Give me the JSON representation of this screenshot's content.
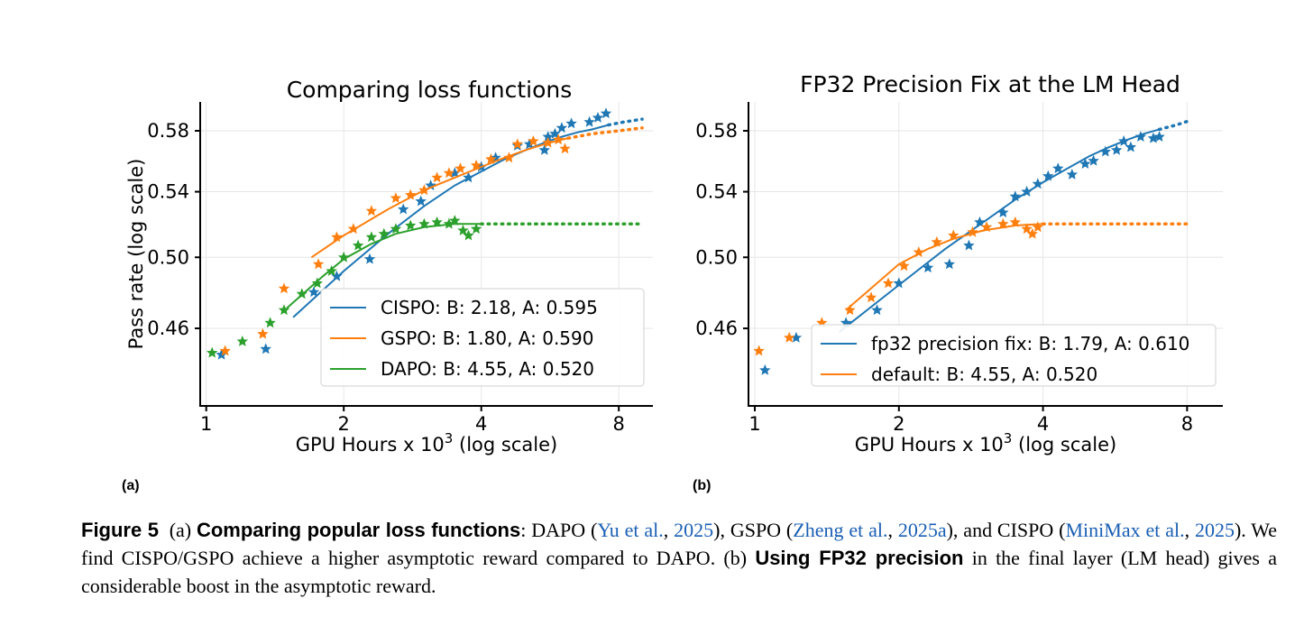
{
  "chart_data": [
    {
      "type": "scatter",
      "panel_label": "(a)",
      "title": "Comparing loss functions",
      "xlabel": "GPU Hours x 10",
      "xlabel_sup": "3",
      "xlabel_suffix": " (log scale)",
      "ylabel": "Pass rate (log scale)",
      "xscale": "log2",
      "yscale": "log",
      "xlim": [
        0.97,
        9.5
      ],
      "ylim": [
        0.42,
        0.6
      ],
      "xticks": [
        1,
        2,
        4,
        8
      ],
      "xtick_labels": [
        "1",
        "2",
        "4",
        "8"
      ],
      "yticks": [
        0.46,
        0.5,
        0.54,
        0.58
      ],
      "ytick_labels": [
        "0.46",
        "0.50",
        "0.54",
        "0.58"
      ],
      "grid": true,
      "legend_position": "lower-right",
      "series": [
        {
          "name": "CISPO: B: 2.18, A: 0.595",
          "color": "#1f77b4",
          "points": [
            [
              1.08,
              0.446
            ],
            [
              1.35,
              0.449
            ],
            [
              1.72,
              0.48
            ],
            [
              1.93,
              0.489
            ],
            [
              2.28,
              0.499
            ],
            [
              2.7,
              0.529
            ],
            [
              2.95,
              0.534
            ],
            [
              3.1,
              0.544
            ],
            [
              3.5,
              0.552
            ],
            [
              3.75,
              0.549
            ],
            [
              4.0,
              0.556
            ],
            [
              4.3,
              0.562
            ],
            [
              4.8,
              0.57
            ],
            [
              5.1,
              0.571
            ],
            [
              5.5,
              0.567
            ],
            [
              5.6,
              0.576
            ],
            [
              5.8,
              0.578
            ],
            [
              6.0,
              0.582
            ],
            [
              6.3,
              0.585
            ],
            [
              6.9,
              0.586
            ],
            [
              7.2,
              0.589
            ],
            [
              7.5,
              0.592
            ]
          ],
          "fit_solid": [
            [
              1.55,
              0.466
            ],
            [
              2.0,
              0.492
            ],
            [
              2.5,
              0.514
            ],
            [
              3.0,
              0.531
            ],
            [
              3.5,
              0.544
            ],
            [
              4.0,
              0.553
            ],
            [
              4.5,
              0.561
            ],
            [
              5.0,
              0.567
            ],
            [
              5.5,
              0.572
            ],
            [
              6.0,
              0.576
            ],
            [
              6.5,
              0.579
            ],
            [
              7.0,
              0.581
            ],
            [
              7.6,
              0.584
            ]
          ],
          "fit_dotted": [
            [
              7.6,
              0.584
            ],
            [
              8.2,
              0.586
            ],
            [
              9.0,
              0.588
            ]
          ]
        },
        {
          "name": "GSPO: B: 1.80, A: 0.590",
          "color": "#ff7f0e",
          "points": [
            [
              1.1,
              0.448
            ],
            [
              1.33,
              0.457
            ],
            [
              1.48,
              0.482
            ],
            [
              1.76,
              0.496
            ],
            [
              1.93,
              0.512
            ],
            [
              2.1,
              0.517
            ],
            [
              2.3,
              0.528
            ],
            [
              2.6,
              0.536
            ],
            [
              2.8,
              0.538
            ],
            [
              3.0,
              0.541
            ],
            [
              3.2,
              0.549
            ],
            [
              3.4,
              0.552
            ],
            [
              3.6,
              0.555
            ],
            [
              3.9,
              0.557
            ],
            [
              4.2,
              0.561
            ],
            [
              4.6,
              0.562
            ],
            [
              4.8,
              0.571
            ],
            [
              5.2,
              0.573
            ],
            [
              5.6,
              0.572
            ],
            [
              5.9,
              0.574
            ],
            [
              6.1,
              0.568
            ]
          ],
          "fit_solid": [
            [
              1.7,
              0.5
            ],
            [
              2.0,
              0.513
            ],
            [
              2.5,
              0.529
            ],
            [
              3.0,
              0.541
            ],
            [
              3.5,
              0.549
            ],
            [
              4.0,
              0.556
            ],
            [
              4.5,
              0.562
            ],
            [
              5.0,
              0.567
            ],
            [
              5.5,
              0.571
            ],
            [
              6.0,
              0.574
            ],
            [
              6.2,
              0.575
            ]
          ],
          "fit_dotted": [
            [
              6.2,
              0.575
            ],
            [
              7.0,
              0.578
            ],
            [
              8.0,
              0.58
            ],
            [
              9.0,
              0.582
            ]
          ]
        },
        {
          "name": "DAPO: B: 4.55, A: 0.520",
          "color": "#2ca02c",
          "points": [
            [
              1.03,
              0.447
            ],
            [
              1.2,
              0.453
            ],
            [
              1.38,
              0.463
            ],
            [
              1.48,
              0.47
            ],
            [
              1.62,
              0.479
            ],
            [
              1.75,
              0.485
            ],
            [
              1.88,
              0.492
            ],
            [
              2.0,
              0.5
            ],
            [
              2.15,
              0.507
            ],
            [
              2.3,
              0.512
            ],
            [
              2.45,
              0.514
            ],
            [
              2.6,
              0.517
            ],
            [
              2.8,
              0.519
            ],
            [
              3.0,
              0.52
            ],
            [
              3.2,
              0.521
            ],
            [
              3.4,
              0.52
            ],
            [
              3.5,
              0.522
            ],
            [
              3.65,
              0.516
            ],
            [
              3.75,
              0.513
            ],
            [
              3.9,
              0.517
            ]
          ],
          "fit_solid": [
            [
              1.5,
              0.471
            ],
            [
              1.8,
              0.489
            ],
            [
              2.0,
              0.499
            ],
            [
              2.3,
              0.508
            ],
            [
              2.6,
              0.514
            ],
            [
              3.0,
              0.518
            ],
            [
              3.5,
              0.52
            ],
            [
              4.0,
              0.52
            ]
          ],
          "fit_dotted": [
            [
              4.0,
              0.52
            ],
            [
              6.0,
              0.52
            ],
            [
              9.0,
              0.52
            ]
          ]
        }
      ]
    },
    {
      "type": "scatter",
      "panel_label": "(b)",
      "title": "FP32 Precision Fix at the LM Head",
      "xlabel": "GPU Hours x 10",
      "xlabel_sup": "3",
      "xlabel_suffix": " (log scale)",
      "xscale": "log2",
      "yscale": "log",
      "xlim": [
        0.97,
        9.5
      ],
      "ylim": [
        0.42,
        0.6
      ],
      "xticks": [
        1,
        2,
        4,
        8
      ],
      "xtick_labels": [
        "1",
        "2",
        "4",
        "8"
      ],
      "yticks": [
        0.46,
        0.5,
        0.54,
        0.58
      ],
      "ytick_labels": [
        "0.46",
        "0.50",
        "0.54",
        "0.58"
      ],
      "grid": true,
      "legend_position": "lower-right",
      "series": [
        {
          "name": "fp32 precision fix: B: 1.79, A: 0.610",
          "color": "#1f77b4",
          "points": [
            [
              1.05,
              0.438
            ],
            [
              1.22,
              0.455
            ],
            [
              1.55,
              0.463
            ],
            [
              1.8,
              0.47
            ],
            [
              2.0,
              0.485
            ],
            [
              2.3,
              0.494
            ],
            [
              2.55,
              0.496
            ],
            [
              2.8,
              0.507
            ],
            [
              2.95,
              0.521
            ],
            [
              3.3,
              0.527
            ],
            [
              3.5,
              0.537
            ],
            [
              3.7,
              0.54
            ],
            [
              3.9,
              0.545
            ],
            [
              4.1,
              0.55
            ],
            [
              4.3,
              0.555
            ],
            [
              4.6,
              0.551
            ],
            [
              4.9,
              0.558
            ],
            [
              5.1,
              0.56
            ],
            [
              5.4,
              0.566
            ],
            [
              5.7,
              0.567
            ],
            [
              5.9,
              0.573
            ],
            [
              6.1,
              0.569
            ],
            [
              6.4,
              0.576
            ],
            [
              6.8,
              0.575
            ],
            [
              7.0,
              0.576
            ]
          ],
          "fit_solid": [
            [
              1.5,
              0.458
            ],
            [
              2.0,
              0.484
            ],
            [
              2.5,
              0.505
            ],
            [
              3.0,
              0.521
            ],
            [
              3.5,
              0.535
            ],
            [
              4.0,
              0.546
            ],
            [
              4.5,
              0.555
            ],
            [
              5.0,
              0.563
            ],
            [
              5.5,
              0.569
            ],
            [
              6.0,
              0.574
            ],
            [
              6.5,
              0.578
            ],
            [
              7.0,
              0.581
            ]
          ],
          "fit_dotted": [
            [
              7.0,
              0.581
            ],
            [
              7.6,
              0.584
            ],
            [
              8.1,
              0.587
            ]
          ]
        },
        {
          "name": "default: B: 4.55, A: 0.520",
          "color": "#ff7f0e",
          "points": [
            [
              1.02,
              0.448
            ],
            [
              1.18,
              0.455
            ],
            [
              1.38,
              0.463
            ],
            [
              1.58,
              0.47
            ],
            [
              1.75,
              0.477
            ],
            [
              1.9,
              0.485
            ],
            [
              2.05,
              0.495
            ],
            [
              2.2,
              0.503
            ],
            [
              2.4,
              0.509
            ],
            [
              2.6,
              0.513
            ],
            [
              2.85,
              0.515
            ],
            [
              3.05,
              0.518
            ],
            [
              3.3,
              0.52
            ],
            [
              3.5,
              0.521
            ],
            [
              3.7,
              0.517
            ],
            [
              3.8,
              0.514
            ],
            [
              3.9,
              0.518
            ]
          ],
          "fit_solid": [
            [
              1.55,
              0.47
            ],
            [
              1.8,
              0.485
            ],
            [
              2.0,
              0.496
            ],
            [
              2.3,
              0.505
            ],
            [
              2.6,
              0.511
            ],
            [
              3.0,
              0.516
            ],
            [
              3.5,
              0.519
            ],
            [
              4.0,
              0.52
            ]
          ],
          "fit_dotted": [
            [
              4.0,
              0.52
            ],
            [
              6.0,
              0.52
            ],
            [
              8.1,
              0.52
            ]
          ]
        }
      ]
    }
  ],
  "caption": {
    "label": "Figure 5",
    "part_a": "(a)",
    "bold_a": "Comparing popular loss functions",
    "colon": ":",
    "text1": " DAPO (",
    "cite1a": "Yu et al.",
    "sep": ", ",
    "cite1b": "2025",
    "text2": "), GSPO (",
    "cite2a": "Zheng et al.",
    "cite2b": "2025a",
    "text3": "), and CISPO (",
    "cite3a": "MiniMax et al.",
    "cite3b": "2025",
    "text4": "). We find CISPO/GSPO achieve a higher asymptotic reward compared to DAPO. (b) ",
    "bold_b": "Using FP32 precision",
    "text5": " in the final layer (LM head) gives a considerable boost in the asymptotic reward."
  }
}
